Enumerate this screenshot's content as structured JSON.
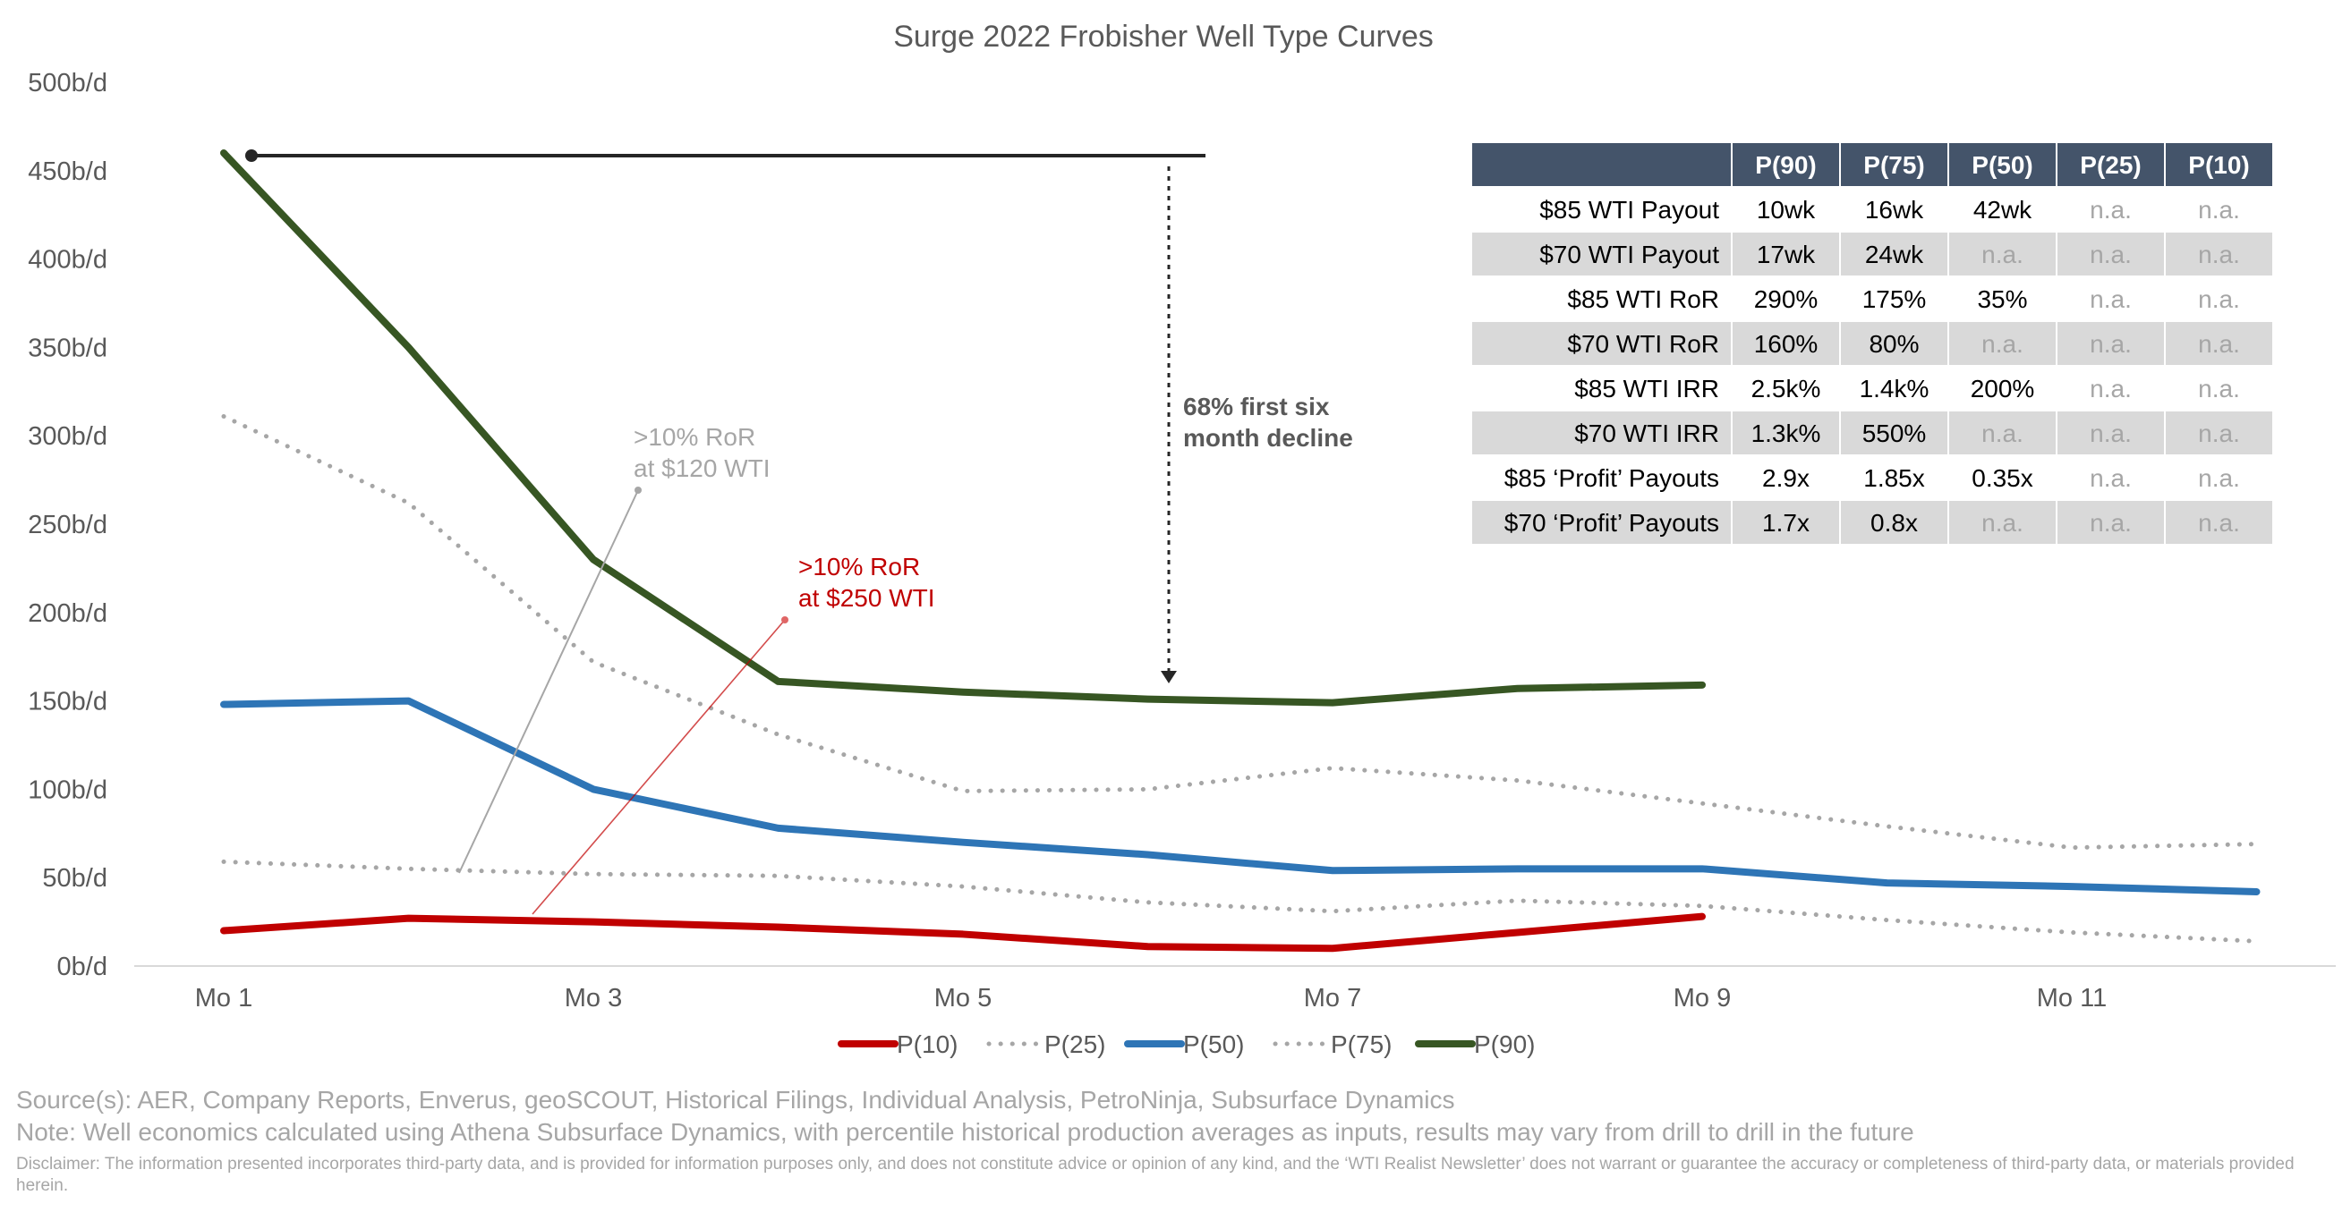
{
  "chart_data": {
    "type": "line",
    "title": "Surge 2022 Frobisher Well Type Curves",
    "xlabel": "",
    "ylabel": "",
    "ylim": [
      0,
      500
    ],
    "y_ticks": [
      "0b/d",
      "50b/d",
      "100b/d",
      "150b/d",
      "200b/d",
      "250b/d",
      "300b/d",
      "350b/d",
      "400b/d",
      "450b/d",
      "500b/d"
    ],
    "x": [
      1,
      2,
      3,
      4,
      5,
      6,
      7,
      8,
      9,
      10,
      11,
      12
    ],
    "x_ticks": [
      "Mo 1",
      "Mo 3",
      "Mo 5",
      "Mo 7",
      "Mo 9",
      "Mo 11"
    ],
    "series": [
      {
        "name": "P(10)",
        "color": "#c00000",
        "style": "solid",
        "values": [
          20,
          27,
          25,
          22,
          18,
          11,
          10,
          19,
          28,
          null,
          null,
          null
        ]
      },
      {
        "name": "P(25)",
        "color": "#a6a6a6",
        "style": "dotted",
        "values": [
          59,
          55,
          52,
          51,
          45,
          36,
          31,
          37,
          34,
          26,
          19,
          14
        ]
      },
      {
        "name": "P(50)",
        "color": "#2e75b6",
        "style": "solid",
        "values": [
          148,
          150,
          100,
          78,
          70,
          63,
          54,
          55,
          55,
          47,
          45,
          42
        ]
      },
      {
        "name": "P(75)",
        "color": "#a6a6a6",
        "style": "dotted",
        "values": [
          311,
          262,
          172,
          131,
          99,
          100,
          112,
          105,
          92,
          79,
          67,
          69
        ]
      },
      {
        "name": "P(90)",
        "color": "#375623",
        "style": "solid",
        "values": [
          460,
          350,
          230,
          161,
          155,
          151,
          149,
          157,
          159,
          null,
          null,
          null
        ]
      }
    ],
    "annotations": {
      "ror_120": {
        "line1": ">10% RoR",
        "line2": "at $120 WTI"
      },
      "ror_250": {
        "line1": ">10% RoR",
        "line2": "at $250 WTI"
      },
      "decline": {
        "line1": "68% first six",
        "line2": "month decline"
      }
    },
    "legend_position": "bottom-center"
  },
  "table": {
    "headers": [
      "P(90)",
      "P(75)",
      "P(50)",
      "P(25)",
      "P(10)"
    ],
    "rows": [
      {
        "label": "$85 WTI Payout",
        "cells": [
          "10wk",
          "16wk",
          "42wk",
          "n.a.",
          "n.a."
        ]
      },
      {
        "label": "$70 WTI Payout",
        "cells": [
          "17wk",
          "24wk",
          "n.a.",
          "n.a.",
          "n.a."
        ]
      },
      {
        "label": "$85 WTI RoR",
        "cells": [
          "290%",
          "175%",
          "35%",
          "n.a.",
          "n.a."
        ]
      },
      {
        "label": "$70 WTI RoR",
        "cells": [
          "160%",
          "80%",
          "n.a.",
          "n.a.",
          "n.a."
        ]
      },
      {
        "label": "$85 WTI IRR",
        "cells": [
          "2.5k%",
          "1.4k%",
          "200%",
          "n.a.",
          "n.a."
        ]
      },
      {
        "label": "$70 WTI IRR",
        "cells": [
          "1.3k%",
          "550%",
          "n.a.",
          "n.a.",
          "n.a."
        ]
      },
      {
        "label": "$85 ‘Profit’ Payouts",
        "cells": [
          "2.9x",
          "1.85x",
          "0.35x",
          "n.a.",
          "n.a."
        ]
      },
      {
        "label": "$70 ‘Profit’ Payouts",
        "cells": [
          "1.7x",
          "0.8x",
          "n.a.",
          "n.a.",
          "n.a."
        ]
      }
    ]
  },
  "footer": {
    "sources": "Source(s): AER, Company Reports, Enverus, geoSCOUT, Historical Filings, Individual Analysis, PetroNinja, Subsurface Dynamics",
    "note": "Note: Well economics calculated using Athena Subsurface Dynamics, with percentile historical production averages as inputs, results may vary from drill to drill in the future",
    "disclaimer": "Disclaimer: The information presented incorporates third-party data, and is provided for information purposes only, and does not constitute advice or opinion of any kind, and the ‘WTI Realist Newsletter’ does not warrant or guarantee the accuracy or completeness of third-party data, or materials provided herein."
  }
}
